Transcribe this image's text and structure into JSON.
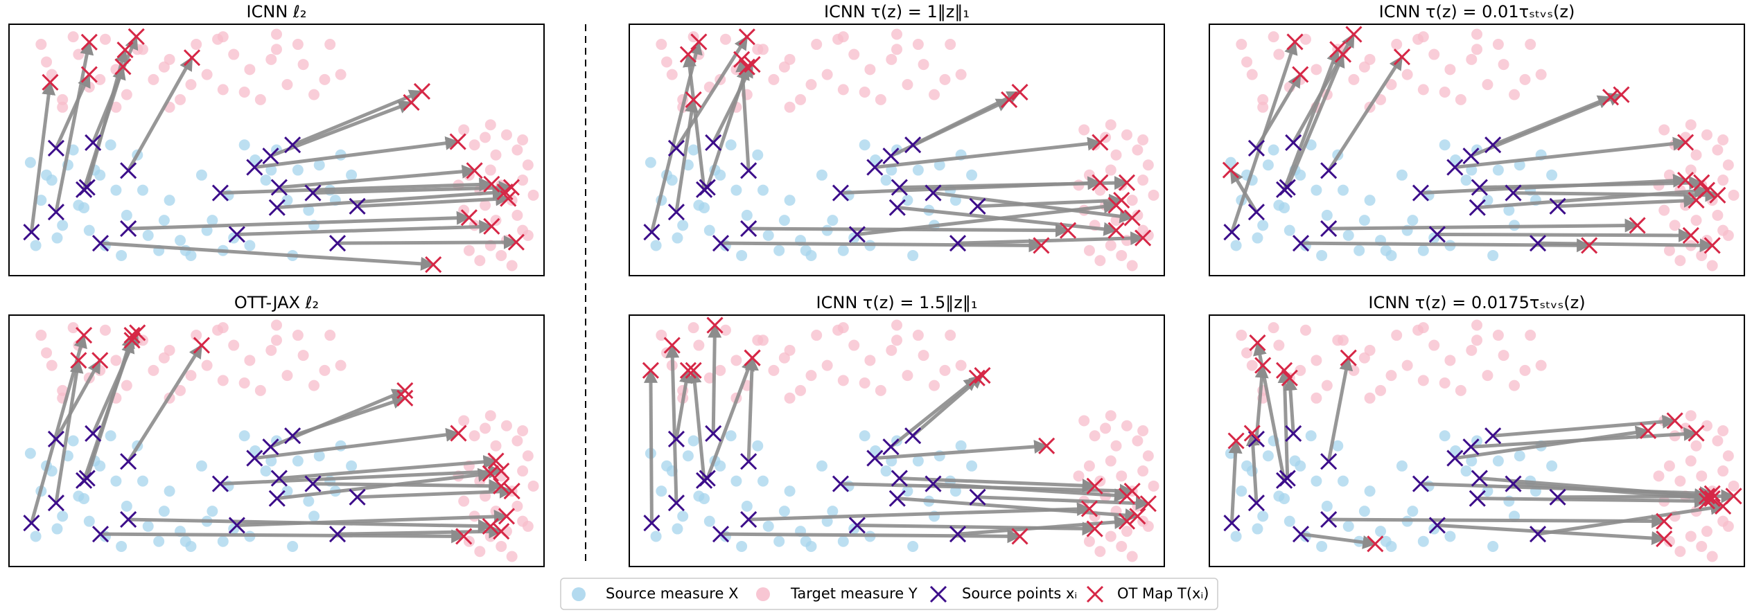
{
  "chart_data": [
    {
      "type": "scatter",
      "title": "ICNN ℓ₂",
      "x": [
        7.7,
        15.0,
        15.0,
        23.8,
        21.3,
        21.7,
        34.2,
        79.3,
        86.0,
        90.2,
        90.2,
        83.9,
        75.2,
        87.0,
        77.2,
        92.7,
        93.9,
        94.8,
        93.3
      ],
      "y": [
        23.1,
        7.1,
        20.0,
        4.9,
        16.9,
        10.2,
        13.3,
        95.6,
        76.9,
        63.6,
        80.4,
        46.7,
        31.1,
        58.2,
        26.7,
        66.7,
        64.9,
        86.7,
        69.3
      ]
    },
    {
      "type": "scatter",
      "title": "ICNN τ(z) = 1‖z‖₁",
      "x": [
        13,
        12,
        22,
        23,
        11,
        22,
        21,
        77,
        82,
        88,
        91,
        88,
        71,
        93,
        73,
        91,
        94,
        96,
        92
      ],
      "y": [
        7,
        30,
        5,
        16,
        12,
        17,
        14,
        88,
        82,
        63,
        72,
        47,
        30,
        63,
        27,
        82,
        77,
        85,
        70
      ]
    },
    {
      "type": "scatter",
      "title": "ICNN τ(z) = 0.01τₛₜᵥₛ(z)",
      "x": [
        16,
        4,
        17,
        27,
        24,
        25,
        36,
        71,
        80,
        89,
        90,
        89,
        77,
        92,
        75,
        93,
        95,
        94,
        91
      ],
      "y": [
        7,
        58,
        20,
        4,
        10,
        12,
        13,
        88,
        80,
        62,
        84,
        47,
        28,
        63,
        29,
        66,
        68,
        88,
        70
      ]
    },
    {
      "type": "scatter",
      "title": "OTT-JAX ℓ₂",
      "x": [
        14,
        13,
        17,
        24,
        23,
        23,
        36,
        85,
        90,
        92,
        93,
        84,
        74,
        91,
        74,
        90,
        92,
        92,
        94
      ],
      "y": [
        8,
        18,
        18,
        7,
        10,
        8,
        12,
        88,
        84,
        62,
        80,
        47,
        30,
        58,
        33,
        63,
        68,
        86,
        70
      ]
    },
    {
      "type": "scatter",
      "title": "ICNN τ(z) = 1.5‖z‖₁",
      "x": [
        4,
        8,
        11,
        16,
        12,
        23,
        23,
        73,
        86,
        94,
        87,
        78,
        65,
        87,
        66,
        95,
        93,
        93,
        97
      ],
      "y": [
        22,
        12,
        22,
        4,
        22,
        17,
        17,
        88,
        77,
        70,
        85,
        52,
        25,
        68,
        24,
        80,
        72,
        82,
        75
      ]
    },
    {
      "type": "scatter",
      "title": "ICNN τ(z) = 0.0175τₛₜᵥₛ(z)",
      "x": [
        5,
        8,
        10,
        15,
        9,
        14,
        26,
        31,
        85,
        94,
        85,
        82,
        91,
        93,
        87,
        93,
        94,
        96,
        98
      ],
      "y": [
        50,
        47,
        20,
        25,
        11,
        22,
        17,
        91,
        82,
        71,
        89,
        46,
        47,
        72,
        42,
        74,
        73,
        76,
        72
      ]
    }
  ],
  "measures": {
    "source": {
      "x": [
        4,
        6,
        8,
        10,
        12,
        14,
        16,
        18,
        20,
        22,
        24,
        26,
        28,
        30,
        32,
        34,
        36,
        38,
        40,
        42,
        44,
        46,
        48,
        50,
        52,
        54,
        56,
        58,
        60,
        62,
        64,
        5,
        9,
        13,
        17,
        21,
        25,
        29,
        33,
        37,
        41,
        45,
        49,
        53,
        57,
        61,
        7,
        11,
        15,
        19
      ],
      "y": [
        55,
        70,
        62,
        80,
        50,
        73,
        58,
        88,
        66,
        76,
        52,
        84,
        90,
        70,
        86,
        92,
        60,
        78,
        90,
        85,
        48,
        54,
        62,
        50,
        70,
        58,
        74,
        56,
        66,
        52,
        60,
        88,
        85,
        72,
        60,
        92,
        66,
        78,
        90,
        82,
        68,
        88,
        58,
        92,
        80,
        70,
        60,
        56,
        82,
        48
      ]
    },
    "target": {
      "x": [
        6,
        8,
        10,
        13,
        15,
        18,
        20,
        22,
        25,
        27,
        30,
        32,
        35,
        37,
        40,
        42,
        45,
        47,
        50,
        52,
        55,
        57,
        60,
        62,
        7,
        12,
        17,
        24,
        29,
        34,
        39,
        44,
        49,
        54,
        59,
        10,
        20,
        30,
        40,
        50,
        85,
        87,
        89,
        91,
        93,
        95,
        97,
        86,
        88,
        90,
        92,
        94,
        96,
        98,
        85,
        87,
        89,
        91,
        93,
        95,
        97,
        86,
        88,
        90,
        92,
        94,
        96,
        84,
        90,
        96
      ],
      "y": [
        8,
        20,
        30,
        12,
        25,
        6,
        18,
        28,
        10,
        22,
        14,
        30,
        8,
        20,
        26,
        12,
        18,
        30,
        10,
        24,
        16,
        28,
        8,
        20,
        15,
        5,
        22,
        10,
        17,
        24,
        6,
        27,
        14,
        8,
        22,
        33,
        33,
        33,
        5,
        4,
        42,
        48,
        45,
        52,
        44,
        50,
        56,
        60,
        66,
        58,
        64,
        70,
        62,
        68,
        74,
        80,
        72,
        78,
        86,
        76,
        84,
        90,
        94,
        88,
        92,
        96,
        82,
        64,
        40,
        46
      ]
    },
    "source_points": {
      "x": [
        4.2,
        8.8,
        8.8,
        15.7,
        14.0,
        14.6,
        22.3,
        17.1,
        22.3,
        39.5,
        42.6,
        45.9,
        48.9,
        50.5,
        53.0,
        50.1,
        56.8,
        61.4,
        65.1
      ],
      "y": [
        82.7,
        74.7,
        49.3,
        47.1,
        65.8,
        64.9,
        58.2,
        87.1,
        81.3,
        67.1,
        83.6,
        56.9,
        52.4,
        64.9,
        48.0,
        72.9,
        67.1,
        87.1,
        72.4
      ]
    }
  },
  "legend": [
    {
      "name": "Source measure X",
      "color": "#a6d4ec"
    },
    {
      "name": "Target measure Y",
      "color": "#f7bccb"
    },
    {
      "name": "Source points xᵢ",
      "color": "#3c0d8a"
    },
    {
      "name": "OT Map T(xᵢ)",
      "color": "#d62746"
    }
  ]
}
